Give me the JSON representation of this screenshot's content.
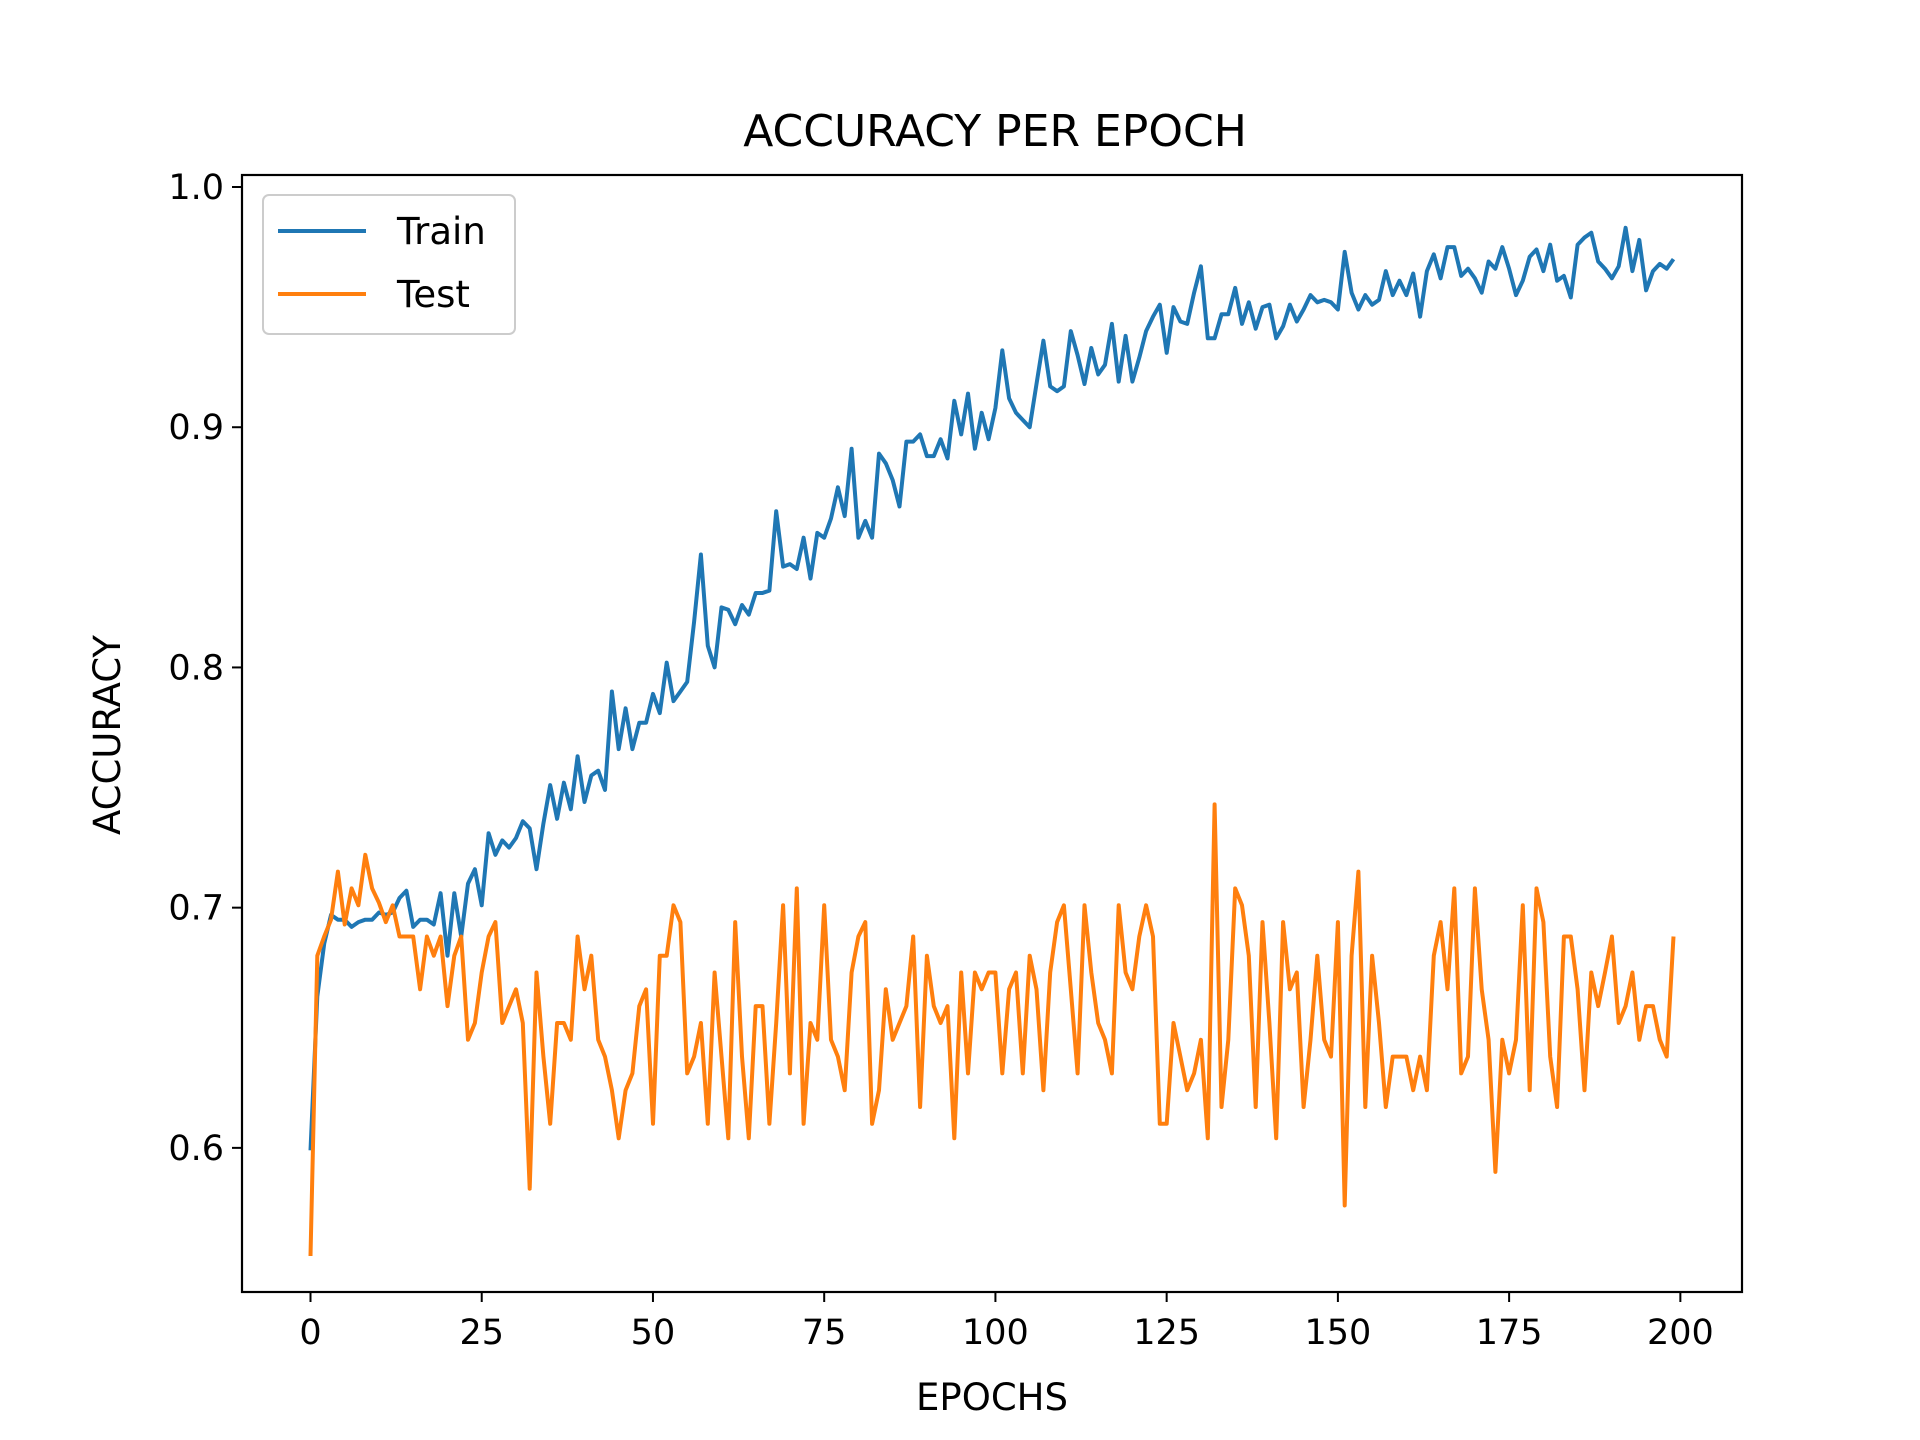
{
  "chart_data": {
    "type": "line",
    "title": "ACCURACY PER EPOCH",
    "xlabel": "EPOCHS",
    "ylabel": "ACCURACY",
    "xlim": [
      -10,
      209
    ],
    "ylim": [
      0.54,
      1.005
    ],
    "xticks": [
      0,
      25,
      50,
      75,
      100,
      125,
      150,
      175,
      200
    ],
    "yticks": [
      0.6,
      0.7,
      0.8,
      0.9,
      1.0
    ],
    "grid": false,
    "legend": "upper-left",
    "series": [
      {
        "name": "Train",
        "color": "#1f77b4",
        "values": [
          0.599,
          0.663,
          0.685,
          0.697,
          0.695,
          0.695,
          0.692,
          0.694,
          0.695,
          0.695,
          0.698,
          0.697,
          0.698,
          0.704,
          0.707,
          0.692,
          0.695,
          0.695,
          0.693,
          0.706,
          0.68,
          0.706,
          0.688,
          0.71,
          0.716,
          0.701,
          0.731,
          0.722,
          0.728,
          0.725,
          0.729,
          0.736,
          0.733,
          0.716,
          0.735,
          0.751,
          0.737,
          0.752,
          0.741,
          0.763,
          0.744,
          0.755,
          0.757,
          0.749,
          0.79,
          0.766,
          0.783,
          0.766,
          0.777,
          0.777,
          0.789,
          0.781,
          0.802,
          0.786,
          0.79,
          0.794,
          0.819,
          0.847,
          0.809,
          0.8,
          0.825,
          0.824,
          0.818,
          0.826,
          0.822,
          0.831,
          0.831,
          0.832,
          0.865,
          0.842,
          0.843,
          0.841,
          0.854,
          0.837,
          0.856,
          0.854,
          0.862,
          0.875,
          0.863,
          0.891,
          0.854,
          0.861,
          0.854,
          0.889,
          0.885,
          0.878,
          0.867,
          0.894,
          0.894,
          0.897,
          0.888,
          0.888,
          0.895,
          0.887,
          0.911,
          0.897,
          0.914,
          0.891,
          0.906,
          0.895,
          0.908,
          0.932,
          0.912,
          0.906,
          0.903,
          0.9,
          0.918,
          0.936,
          0.917,
          0.915,
          0.917,
          0.94,
          0.93,
          0.918,
          0.933,
          0.922,
          0.926,
          0.943,
          0.919,
          0.938,
          0.919,
          0.929,
          0.94,
          0.946,
          0.951,
          0.931,
          0.95,
          0.944,
          0.943,
          0.956,
          0.967,
          0.937,
          0.937,
          0.947,
          0.947,
          0.958,
          0.943,
          0.952,
          0.941,
          0.95,
          0.951,
          0.937,
          0.942,
          0.951,
          0.944,
          0.949,
          0.955,
          0.952,
          0.953,
          0.952,
          0.949,
          0.973,
          0.956,
          0.949,
          0.955,
          0.951,
          0.953,
          0.965,
          0.955,
          0.961,
          0.955,
          0.964,
          0.946,
          0.965,
          0.972,
          0.962,
          0.975,
          0.975,
          0.963,
          0.966,
          0.962,
          0.956,
          0.969,
          0.966,
          0.975,
          0.966,
          0.955,
          0.961,
          0.971,
          0.974,
          0.965,
          0.976,
          0.961,
          0.963,
          0.954,
          0.976,
          0.979,
          0.981,
          0.969,
          0.966,
          0.962,
          0.967,
          0.983,
          0.965,
          0.978,
          0.957,
          0.965,
          0.968,
          0.966,
          0.97
        ]
      },
      {
        "name": "Test",
        "color": "#ff7f0e",
        "values": [
          0.555,
          0.68,
          0.688,
          0.695,
          0.715,
          0.693,
          0.708,
          0.701,
          0.722,
          0.708,
          0.702,
          0.694,
          0.701,
          0.688,
          0.688,
          0.688,
          0.666,
          0.688,
          0.68,
          0.688,
          0.659,
          0.68,
          0.688,
          0.645,
          0.652,
          0.673,
          0.688,
          0.694,
          0.652,
          0.659,
          0.666,
          0.652,
          0.583,
          0.673,
          0.638,
          0.61,
          0.652,
          0.652,
          0.645,
          0.688,
          0.666,
          0.68,
          0.645,
          0.638,
          0.624,
          0.604,
          0.624,
          0.631,
          0.659,
          0.666,
          0.61,
          0.68,
          0.68,
          0.701,
          0.694,
          0.631,
          0.638,
          0.652,
          0.61,
          0.673,
          0.638,
          0.604,
          0.694,
          0.638,
          0.604,
          0.659,
          0.659,
          0.61,
          0.652,
          0.701,
          0.631,
          0.708,
          0.61,
          0.652,
          0.645,
          0.701,
          0.645,
          0.638,
          0.624,
          0.673,
          0.688,
          0.694,
          0.61,
          0.624,
          0.666,
          0.645,
          0.652,
          0.659,
          0.688,
          0.617,
          0.68,
          0.659,
          0.652,
          0.659,
          0.604,
          0.673,
          0.631,
          0.673,
          0.666,
          0.673,
          0.673,
          0.631,
          0.666,
          0.673,
          0.631,
          0.68,
          0.666,
          0.624,
          0.673,
          0.694,
          0.701,
          0.666,
          0.631,
          0.701,
          0.673,
          0.652,
          0.645,
          0.631,
          0.701,
          0.673,
          0.666,
          0.688,
          0.701,
          0.688,
          0.61,
          0.61,
          0.652,
          0.638,
          0.624,
          0.631,
          0.645,
          0.604,
          0.743,
          0.617,
          0.645,
          0.708,
          0.701,
          0.68,
          0.617,
          0.694,
          0.652,
          0.604,
          0.694,
          0.666,
          0.673,
          0.617,
          0.645,
          0.68,
          0.645,
          0.638,
          0.694,
          0.576,
          0.68,
          0.715,
          0.617,
          0.68,
          0.652,
          0.617,
          0.638,
          0.638,
          0.638,
          0.624,
          0.638,
          0.624,
          0.68,
          0.694,
          0.666,
          0.708,
          0.631,
          0.638,
          0.708,
          0.666,
          0.645,
          0.59,
          0.645,
          0.631,
          0.645,
          0.701,
          0.624,
          0.708,
          0.694,
          0.638,
          0.617,
          0.688,
          0.688,
          0.666,
          0.624,
          0.673,
          0.659,
          0.673,
          0.688,
          0.652,
          0.659,
          0.673,
          0.645,
          0.659,
          0.659,
          0.645,
          0.638,
          0.688
        ]
      }
    ]
  }
}
